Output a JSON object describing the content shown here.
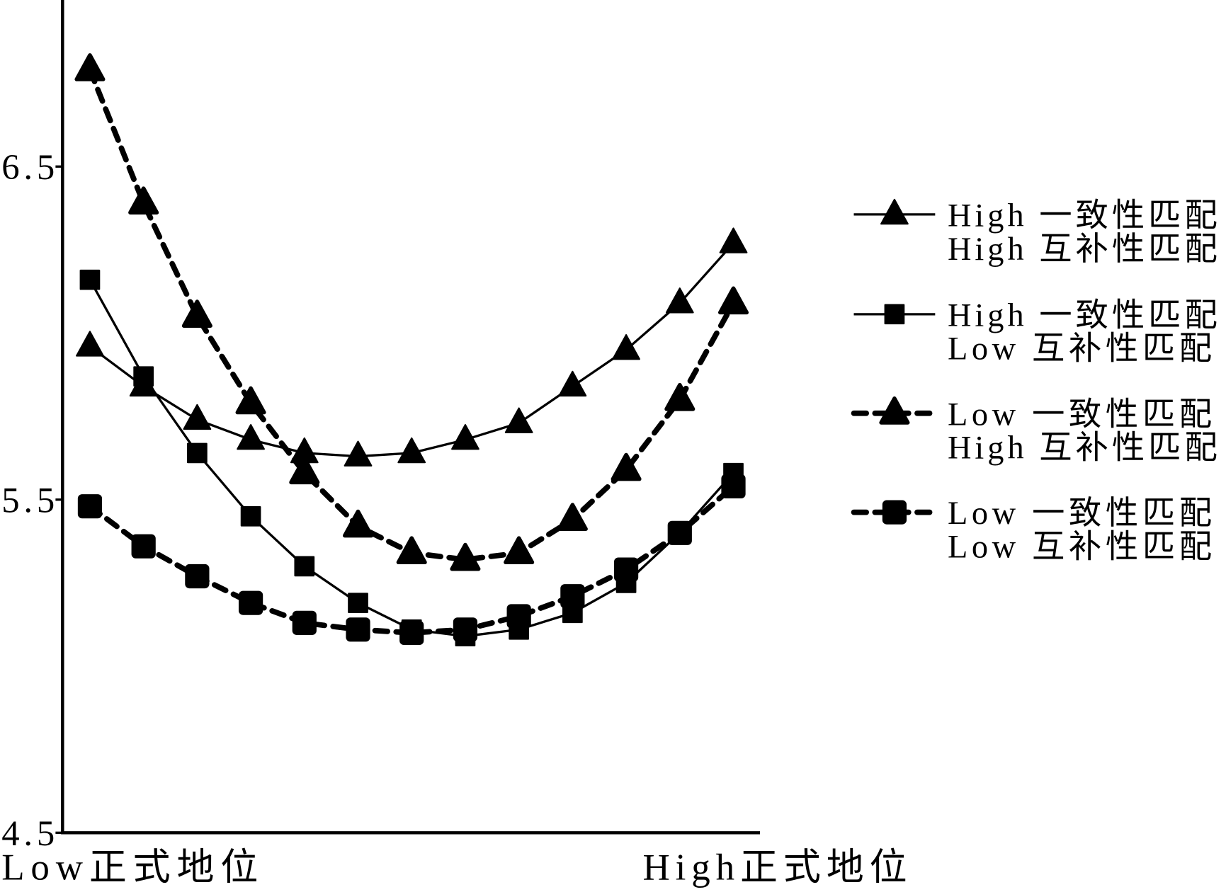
{
  "chart_data": {
    "type": "line",
    "xtick_labels": [
      "Low正式地位",
      "High正式地位"
    ],
    "yticks": [
      "6.5",
      "5.5",
      "4.5"
    ],
    "ylim": [
      4.5,
      7.0
    ],
    "grid": false,
    "legend_position": "right",
    "colors": {
      "background": "#ffffff",
      "ink": "#000000"
    },
    "series": [
      {
        "name_lines": [
          "High 一致性匹配",
          "High 互补性匹配"
        ],
        "line_style": "solid",
        "marker": "triangle",
        "color": "#000000",
        "values": [
          5.96,
          5.84,
          5.74,
          5.68,
          5.64,
          5.63,
          5.64,
          5.68,
          5.73,
          5.84,
          5.95,
          6.09,
          6.27
        ]
      },
      {
        "name_lines": [
          "High 一致性匹配",
          "Low 互补性匹配"
        ],
        "line_style": "solid",
        "marker": "square",
        "color": "#000000",
        "values": [
          6.16,
          5.87,
          5.64,
          5.45,
          5.3,
          5.19,
          5.11,
          5.09,
          5.11,
          5.16,
          5.25,
          5.4,
          5.58
        ]
      },
      {
        "name_lines": [
          "Low 一致性匹配",
          "High 互补性匹配"
        ],
        "line_style": "dashed",
        "marker": "triangle",
        "color": "#000000",
        "values": [
          6.79,
          6.39,
          6.05,
          5.79,
          5.58,
          5.42,
          5.34,
          5.32,
          5.34,
          5.44,
          5.59,
          5.8,
          6.09
        ]
      },
      {
        "name_lines": [
          "Low 一致性匹配",
          "Low 互补性匹配"
        ],
        "line_style": "dashed",
        "marker": "square",
        "color": "#000000",
        "values": [
          5.48,
          5.36,
          5.27,
          5.19,
          5.13,
          5.11,
          5.1,
          5.11,
          5.15,
          5.21,
          5.29,
          5.4,
          5.54
        ]
      }
    ]
  }
}
